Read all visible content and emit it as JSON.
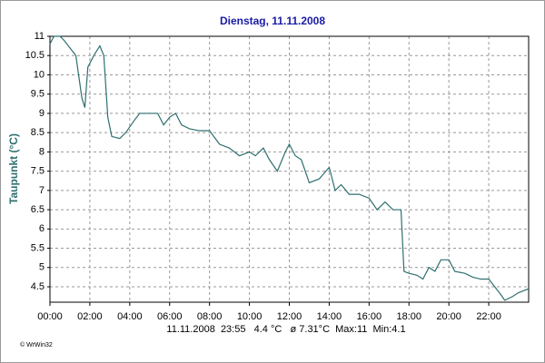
{
  "chart_data": {
    "type": "line",
    "title": "Dienstag, 11.11.2008",
    "y_label": "Taupunkt (°C)",
    "x": [
      0,
      0.2,
      0.5,
      0.7,
      1.0,
      1.3,
      1.6,
      1.75,
      1.9,
      2.2,
      2.5,
      2.7,
      2.9,
      3.1,
      3.5,
      3.8,
      4.2,
      4.5,
      5.0,
      5.4,
      5.7,
      6.0,
      6.3,
      6.6,
      7.0,
      7.5,
      8.0,
      8.5,
      9.0,
      9.5,
      10.0,
      10.3,
      10.7,
      11.0,
      11.4,
      11.8,
      12.0,
      12.3,
      12.6,
      13.0,
      13.5,
      14.0,
      14.3,
      14.6,
      15.0,
      15.5,
      16.0,
      16.4,
      16.8,
      17.2,
      17.6,
      17.75,
      18.0,
      18.4,
      18.7,
      19.0,
      19.3,
      19.6,
      20.0,
      20.3,
      20.8,
      21.2,
      21.6,
      22.0,
      22.3,
      22.6,
      22.8,
      23.2,
      23.5,
      24
    ],
    "series": [
      {
        "name": "Taupunkt",
        "color": "#2f6f6f",
        "values": [
          10.8,
          11,
          11,
          10.9,
          10.7,
          10.5,
          9.4,
          9.15,
          10.2,
          10.5,
          10.75,
          10.5,
          8.9,
          8.4,
          8.35,
          8.5,
          8.8,
          9,
          9,
          9,
          8.7,
          8.9,
          9,
          8.7,
          8.6,
          8.55,
          8.55,
          8.2,
          8.1,
          7.9,
          8.0,
          7.9,
          8.1,
          7.8,
          7.5,
          8.0,
          8.2,
          7.9,
          7.8,
          7.2,
          7.3,
          7.6,
          7.0,
          7.15,
          6.9,
          6.9,
          6.8,
          6.5,
          6.7,
          6.5,
          6.5,
          4.9,
          4.85,
          4.8,
          4.7,
          5.0,
          4.9,
          5.2,
          5.2,
          4.9,
          4.85,
          4.75,
          4.7,
          4.7,
          4.5,
          4.3,
          4.15,
          4.25,
          4.35,
          4.45
        ]
      }
    ],
    "xlim": [
      0,
      24
    ],
    "ylim": [
      4.1,
      11
    ],
    "xticks": [
      {
        "value": 0,
        "label": "00:00"
      },
      {
        "value": 2,
        "label": "02:00"
      },
      {
        "value": 4,
        "label": "04:00"
      },
      {
        "value": 6,
        "label": "06:00"
      },
      {
        "value": 8,
        "label": "08:00"
      },
      {
        "value": 10,
        "label": "10:00"
      },
      {
        "value": 12,
        "label": "12:00"
      },
      {
        "value": 14,
        "label": "14:00"
      },
      {
        "value": 16,
        "label": "16:00"
      },
      {
        "value": 18,
        "label": "18:00"
      },
      {
        "value": 20,
        "label": "20:00"
      },
      {
        "value": 22,
        "label": "22:00"
      }
    ],
    "yticks": [
      4.5,
      5,
      5.5,
      6,
      6.5,
      7,
      7.5,
      8,
      8.5,
      9,
      9.5,
      10,
      10.5,
      11
    ],
    "grid": true,
    "footer": "11.11.2008  23:55   4.4 °C   ø 7.31°C  Max:11  Min:4.1",
    "credit": "© WrWin32"
  }
}
